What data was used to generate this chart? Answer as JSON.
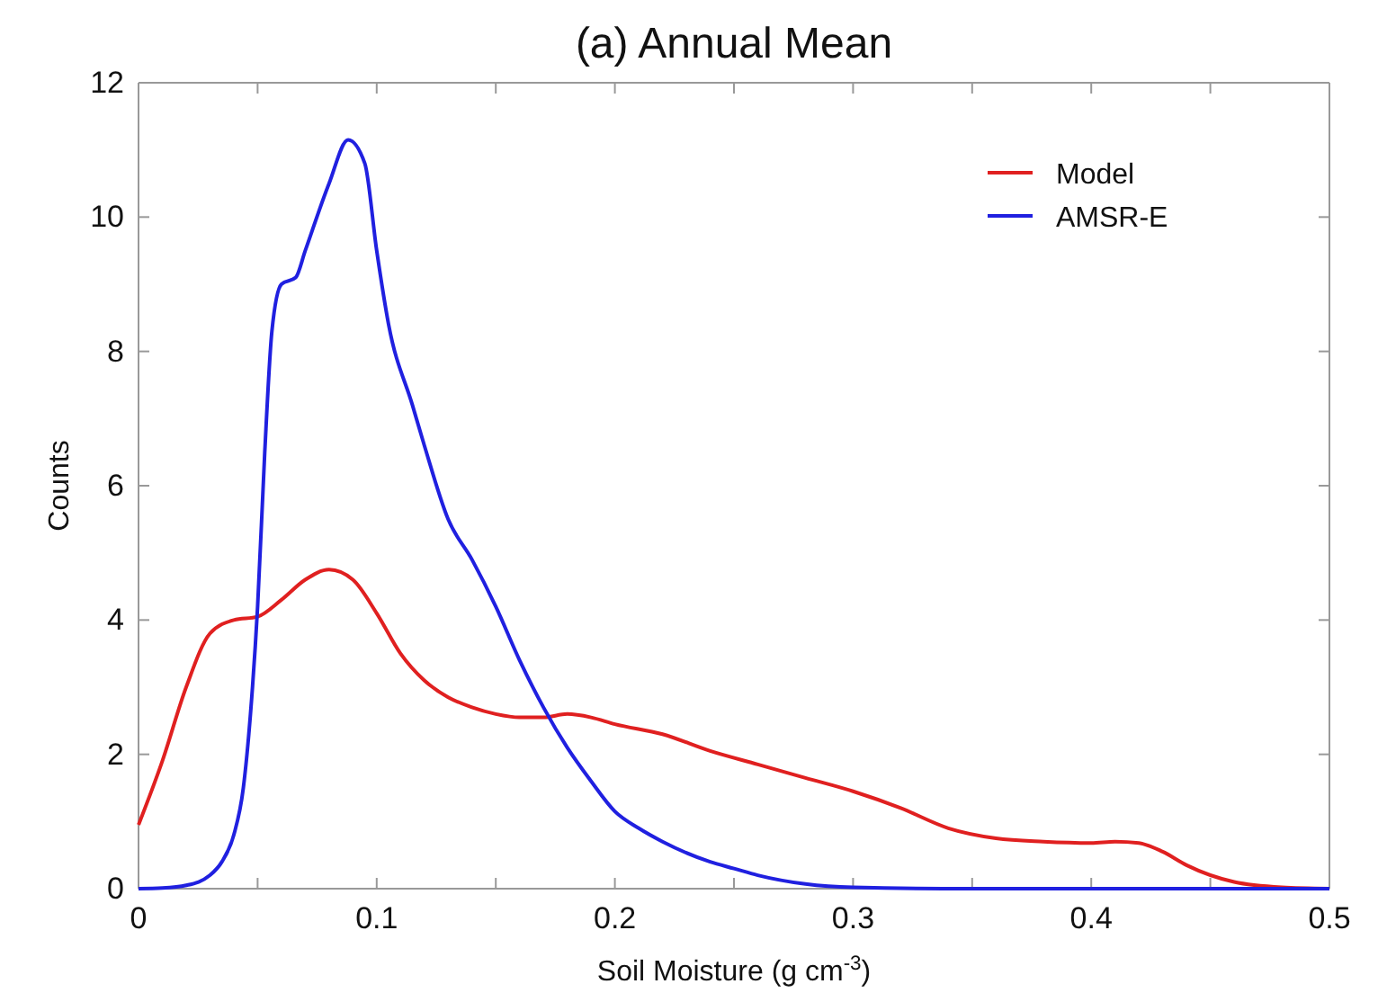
{
  "chart_data": {
    "type": "line",
    "title": "(a) Annual Mean",
    "xlabel": "Soil Moisture (g cm$^{-3}$)",
    "ylabel": "Counts",
    "xlim": [
      0,
      0.5
    ],
    "ylim": [
      0,
      12
    ],
    "xticks": [
      0,
      {
        "value": 0.05,
        "label": null
      },
      0.1,
      {
        "value": 0.15,
        "label": null
      },
      0.2,
      {
        "value": 0.25,
        "label": null
      },
      0.3,
      {
        "value": 0.35,
        "label": null
      },
      0.4,
      {
        "value": 0.45,
        "label": null
      },
      0.5
    ],
    "yticks": [
      0,
      2,
      4,
      6,
      8,
      10,
      12
    ],
    "grid": false,
    "legend": "top right",
    "line_style": "solid",
    "marker": "none",
    "series": [
      {
        "name": "Model",
        "color": "#e02020",
        "x": [
          0,
          0.01,
          0.02,
          0.03,
          0.04,
          0.05,
          0.06,
          0.07,
          0.08,
          0.09,
          0.1,
          0.11,
          0.12,
          0.13,
          0.14,
          0.15,
          0.16,
          0.17,
          0.18,
          0.19,
          0.2,
          0.22,
          0.24,
          0.26,
          0.28,
          0.3,
          0.32,
          0.34,
          0.36,
          0.38,
          0.4,
          0.41,
          0.42,
          0.43,
          0.44,
          0.46,
          0.48,
          0.5
        ],
        "values": [
          0.95,
          1.9,
          3.0,
          3.8,
          4.0,
          4.05,
          4.3,
          4.6,
          4.75,
          4.6,
          4.1,
          3.5,
          3.1,
          2.85,
          2.7,
          2.6,
          2.55,
          2.55,
          2.6,
          2.55,
          2.45,
          2.3,
          2.05,
          1.85,
          1.65,
          1.45,
          1.2,
          0.9,
          0.75,
          0.7,
          0.68,
          0.7,
          0.68,
          0.55,
          0.35,
          0.1,
          0.02,
          0
        ]
      },
      {
        "name": "AMSR-E",
        "color": "#2020e0",
        "x": [
          0,
          0.01,
          0.02,
          0.03,
          0.035,
          0.04,
          0.044,
          0.047,
          0.05,
          0.053,
          0.056,
          0.06,
          0.066,
          0.07,
          0.08,
          0.088,
          0.095,
          0.1,
          0.105,
          0.115,
          0.12,
          0.13,
          0.14,
          0.15,
          0.16,
          0.17,
          0.18,
          0.19,
          0.2,
          0.21,
          0.22,
          0.24,
          0.25,
          0.26,
          0.28,
          0.3,
          0.35,
          0.5
        ],
        "values": [
          0,
          0.01,
          0.05,
          0.2,
          0.4,
          0.8,
          1.5,
          2.6,
          4.2,
          6.5,
          8.3,
          9.0,
          9.1,
          9.5,
          10.5,
          11.15,
          10.8,
          9.5,
          8.4,
          7.2,
          6.6,
          5.5,
          4.9,
          4.2,
          3.4,
          2.7,
          2.1,
          1.6,
          1.15,
          0.9,
          0.7,
          0.4,
          0.3,
          0.2,
          0.07,
          0.02,
          0,
          0
        ]
      }
    ]
  }
}
